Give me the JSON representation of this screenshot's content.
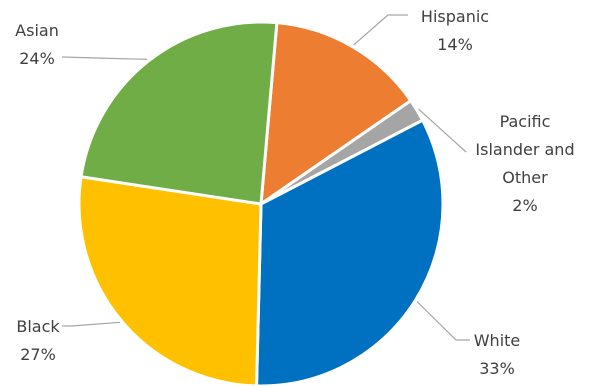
{
  "chart_data": {
    "type": "pie",
    "title": "",
    "slices": [
      {
        "name": "Hispanic",
        "value": 14,
        "label": "14%",
        "color": "#ED7D31"
      },
      {
        "name": "Pacific Islander and Other",
        "value": 2,
        "label": "2%",
        "color": "#A5A5A5"
      },
      {
        "name": "White",
        "value": 33,
        "label": "33%",
        "color": "#0070C0"
      },
      {
        "name": "Black",
        "value": 27,
        "label": "27%",
        "color": "#FFC000"
      },
      {
        "name": "Asian",
        "value": 24,
        "label": "24%",
        "color": "#70AD47"
      }
    ]
  }
}
